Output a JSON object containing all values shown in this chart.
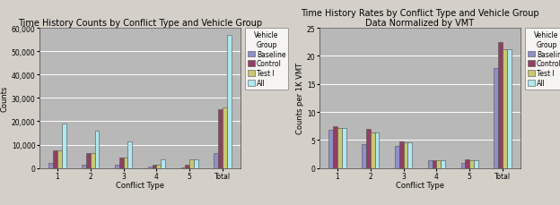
{
  "left_title": "Time History Counts by Conflict Type and Vehicle Group",
  "right_title": "Time History Rates by Conflict Type and Vehicle Group\nData Normalized by VMT",
  "xlabel": "Conflict Type",
  "left_ylabel": "Counts",
  "right_ylabel": "Counts per 1K VMT",
  "legend_title": "Vehicle\nGroup",
  "legend_labels": [
    "Baseline",
    "Control",
    "Test I",
    "All"
  ],
  "bar_colors": [
    "#9090c8",
    "#904060",
    "#c8c870",
    "#b0e8f0"
  ],
  "categories": [
    "1",
    "2",
    "3",
    "4",
    "5",
    "Total"
  ],
  "counts": {
    "Baseline": [
      2000,
      1500,
      1500,
      500,
      200,
      6500
    ],
    "Control": [
      7500,
      6500,
      4500,
      1200,
      1500,
      25000
    ],
    "Test I": [
      7500,
      6500,
      4500,
      1500,
      3500,
      26000
    ],
    "All": [
      19000,
      16000,
      11500,
      3500,
      3500,
      57000
    ]
  },
  "rates": {
    "Baseline": [
      6.8,
      4.2,
      3.9,
      1.3,
      0.9,
      17.8
    ],
    "Control": [
      7.5,
      7.0,
      4.7,
      1.3,
      1.5,
      22.5
    ],
    "Test I": [
      7.2,
      6.3,
      4.5,
      1.3,
      1.4,
      21.2
    ],
    "All": [
      7.2,
      6.3,
      4.5,
      1.4,
      1.4,
      21.2
    ]
  },
  "left_ylim": [
    0,
    60000
  ],
  "left_yticks": [
    0,
    10000,
    20000,
    30000,
    40000,
    50000,
    60000
  ],
  "right_ylim": [
    0,
    25
  ],
  "right_yticks": [
    0,
    5,
    10,
    15,
    20,
    25
  ],
  "background_color": "#b8b8b8",
  "figure_background": "#d4d0c8",
  "bar_edge_color": "#505050",
  "bar_edge_width": 0.4,
  "title_fontsize": 7.0,
  "axis_label_fontsize": 6.0,
  "tick_fontsize": 5.5,
  "legend_fontsize": 5.5
}
